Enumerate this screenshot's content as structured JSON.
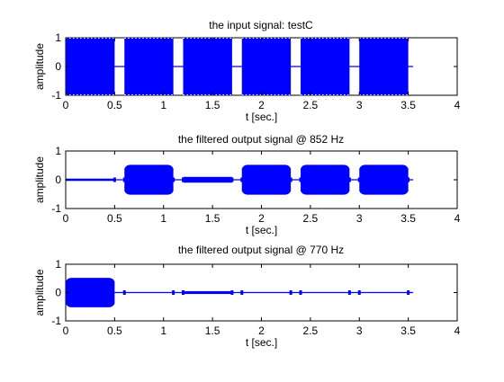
{
  "figure": {
    "background": "#ffffff",
    "signal_color": "#0000ff"
  },
  "chart_data": [
    {
      "type": "line",
      "title": "the input signal: testC",
      "xlabel": "t [sec.]",
      "ylabel": "amplitude",
      "xlim": [
        0,
        4
      ],
      "ylim": [
        -1,
        1
      ],
      "xticks": [
        "0",
        "0.5",
        "1",
        "1.5",
        "2",
        "2.5",
        "3",
        "3.5",
        "4"
      ],
      "yticks": [
        "-1",
        "0",
        "1"
      ],
      "signal_end": 3.55,
      "bursts": [
        {
          "start": 0.0,
          "end": 0.5,
          "amplitude": 1.0,
          "shape": "flat"
        },
        {
          "start": 0.6,
          "end": 1.1,
          "amplitude": 1.0,
          "shape": "flat"
        },
        {
          "start": 1.2,
          "end": 1.7,
          "amplitude": 1.0,
          "shape": "flat"
        },
        {
          "start": 1.8,
          "end": 2.3,
          "amplitude": 1.0,
          "shape": "flat"
        },
        {
          "start": 2.4,
          "end": 2.9,
          "amplitude": 1.0,
          "shape": "flat"
        },
        {
          "start": 3.0,
          "end": 3.5,
          "amplitude": 1.0,
          "shape": "flat"
        }
      ]
    },
    {
      "type": "line",
      "title": "the filtered output signal @ 852 Hz",
      "xlabel": "t [sec.]",
      "ylabel": "amplitude",
      "xlim": [
        0,
        4
      ],
      "ylim": [
        -1,
        1
      ],
      "xticks": [
        "0",
        "0.5",
        "1",
        "1.5",
        "2",
        "2.5",
        "3",
        "3.5",
        "4"
      ],
      "yticks": [
        "-1",
        "0",
        "1"
      ],
      "signal_end": 3.55,
      "bursts": [
        {
          "start": 0.0,
          "end": 0.5,
          "amplitude": 0.04,
          "shape": "flat"
        },
        {
          "start": 0.6,
          "end": 1.1,
          "amplitude": 0.52,
          "shape": "rounded"
        },
        {
          "start": 1.2,
          "end": 1.7,
          "amplitude": 0.1,
          "shape": "rounded"
        },
        {
          "start": 1.8,
          "end": 2.3,
          "amplitude": 0.52,
          "shape": "rounded"
        },
        {
          "start": 2.4,
          "end": 2.9,
          "amplitude": 0.52,
          "shape": "rounded"
        },
        {
          "start": 3.0,
          "end": 3.5,
          "amplitude": 0.52,
          "shape": "rounded"
        }
      ],
      "transients": [
        0.5,
        0.6,
        1.1,
        1.2,
        1.7,
        1.8,
        2.3,
        2.4,
        2.9,
        3.0,
        3.5
      ]
    },
    {
      "type": "line",
      "title": "the filtered output signal @ 770 Hz",
      "xlabel": "t [sec.]",
      "ylabel": "amplitude",
      "xlim": [
        0,
        4
      ],
      "ylim": [
        -1,
        1
      ],
      "xticks": [
        "0",
        "0.5",
        "1",
        "1.5",
        "2",
        "2.5",
        "3",
        "3.5",
        "4"
      ],
      "yticks": [
        "-1",
        "0",
        "1"
      ],
      "signal_end": 3.55,
      "bursts": [
        {
          "start": 0.0,
          "end": 0.5,
          "amplitude": 0.52,
          "shape": "rounded"
        },
        {
          "start": 1.2,
          "end": 1.7,
          "amplitude": 0.05,
          "shape": "flat"
        }
      ],
      "transients": [
        0.6,
        1.1,
        1.2,
        1.7,
        1.8,
        2.3,
        2.4,
        2.9,
        3.0,
        3.5
      ]
    }
  ]
}
